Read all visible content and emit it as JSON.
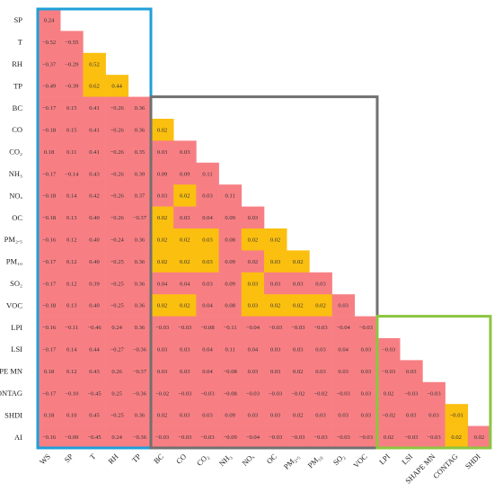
{
  "chart_data": {
    "type": "heatmap",
    "title": "",
    "row_labels": [
      "SP",
      "T",
      "RH",
      "TP",
      "BC",
      "CO",
      "CO₂",
      "NH₃",
      "NOₓ",
      "OC",
      "PM₂.₅",
      "PM₁₀",
      "SO₂",
      "VOC",
      "LPI",
      "LSI",
      "SHAPE MN",
      "CONTAG",
      "SHDI",
      "AI"
    ],
    "col_labels": [
      "WS",
      "SP",
      "T",
      "RH",
      "TP",
      "BC",
      "CO",
      "CO₂",
      "NH₃",
      "NOₓ",
      "OC",
      "PM₂.₅",
      "PM₁₀",
      "SO₂",
      "VOC",
      "LPI",
      "LSI",
      "SHAPE MN",
      "CONTAG",
      "SHDI"
    ],
    "cell_labels": [
      [
        "0.24"
      ],
      [
        "−0.52",
        "−0.55"
      ],
      [
        "−0.37",
        "−0.29",
        "0.52"
      ],
      [
        "−0.49",
        "−0.39",
        "0.62",
        "0.44"
      ],
      [
        "−0.17",
        "0.15",
        "0.41",
        "−0.26",
        "0.36"
      ],
      [
        "−0.18",
        "0.15",
        "0.41",
        "−0.26",
        "0.36",
        "0.02"
      ],
      [
        "0.18",
        "0.11",
        "0.41",
        "−0.26",
        "0.35",
        "0.03",
        "0.03"
      ],
      [
        "−0.17",
        "−0.14",
        "0.43",
        "−0.26",
        "0.39",
        "0.09",
        "0.09",
        "0.11"
      ],
      [
        "−0.18",
        "0.14",
        "0.42",
        "−0.26",
        "0.37",
        "0.03",
        "0.02",
        "0.03",
        "0.11"
      ],
      [
        "−0.18",
        "0.13",
        "0.40",
        "−0.26",
        "−0.37",
        "0.02",
        "0.03",
        "0.04",
        "0.09",
        "0.03"
      ],
      [
        "−0.16",
        "0.12",
        "0.40",
        "−0.24",
        "0.36",
        "0.02",
        "0.02",
        "0.03",
        "0.08",
        "0.02",
        "0.02"
      ],
      [
        "−0.17",
        "0.12",
        "0.40",
        "−0.25",
        "0.36",
        "0.02",
        "0.02",
        "0.03",
        "0.09",
        "0.02",
        "0.03",
        "0.02"
      ],
      [
        "−0.17",
        "0.12",
        "0.39",
        "−0.25",
        "0.36",
        "0.04",
        "0.04",
        "0.03",
        "0.09",
        "0.03",
        "0.03",
        "0.03",
        "0.03"
      ],
      [
        "−0.18",
        "0.13",
        "0.40",
        "−0.25",
        "0.36",
        "0.02",
        "0.02",
        "0.04",
        "0.08",
        "0.03",
        "0.02",
        "0.02",
        "0.02",
        "0.03"
      ],
      [
        "−0.16",
        "−0.11",
        "−0.46",
        "0.24",
        "0.36",
        "−0.03",
        "−0.03",
        "−0.08",
        "−0.11",
        "−0.04",
        "−0.03",
        "−0.03",
        "−0.03",
        "−0.04",
        "−0.03"
      ],
      [
        "−0.17",
        "0.14",
        "0.44",
        "−0.27",
        "−0.36",
        "0.03",
        "0.03",
        "0.04",
        "0.11",
        "0.04",
        "0.03",
        "0.03",
        "0.03",
        "0.04",
        "0.03",
        "−0.03"
      ],
      [
        "0.18",
        "0.12",
        "0.43",
        "0.26",
        "−0.37",
        "0.03",
        "0.03",
        "0.04",
        "−0.08",
        "0.03",
        "0.03",
        "0.02",
        "0.03",
        "0.03",
        "0.03",
        "−0.03",
        "0.03"
      ],
      [
        "−0.17",
        "−0.10",
        "−0.45",
        "0.25",
        "−0.36",
        "−0.02",
        "−0.03",
        "−0.03",
        "−0.08",
        "−0.03",
        "−0.03",
        "−0.02",
        "−0.02",
        "−0.03",
        "0.03",
        "0.02",
        "−0.03",
        "−0.03"
      ],
      [
        "0.18",
        "0.10",
        "0.45",
        "−0.25",
        "0.36",
        "0.02",
        "0.03",
        "0.03",
        "0.09",
        "0.03",
        "0.03",
        "0.02",
        "0.03",
        "0.03",
        "0.03",
        "−0.02",
        "0.03",
        "0.03",
        "−0.01"
      ],
      [
        "−0.16",
        "−0.09",
        "−0.45",
        "0.24",
        "−0.36",
        "−0.03",
        "−0.03",
        "−0.03",
        "−0.09",
        "−0.04",
        "−0.03",
        "−0.03",
        "−0.03",
        "−0.03",
        "−0.03",
        "0.02",
        "−0.03",
        "−0.03",
        "0.02",
        "0.02"
      ]
    ],
    "highlight_cells": [
      [
        2,
        2
      ],
      [
        3,
        2
      ],
      [
        3,
        3
      ],
      [
        5,
        5
      ],
      [
        8,
        6
      ],
      [
        9,
        5
      ],
      [
        10,
        5
      ],
      [
        10,
        6
      ],
      [
        10,
        7
      ],
      [
        10,
        9
      ],
      [
        10,
        10
      ],
      [
        11,
        5
      ],
      [
        11,
        6
      ],
      [
        11,
        7
      ],
      [
        11,
        10
      ],
      [
        11,
        11
      ],
      [
        12,
        9
      ],
      [
        13,
        5
      ],
      [
        13,
        6
      ],
      [
        13,
        9
      ],
      [
        13,
        10
      ],
      [
        13,
        11
      ],
      [
        13,
        12
      ],
      [
        18,
        18
      ],
      [
        19,
        18
      ]
    ],
    "colors": {
      "cell": "#f77f84",
      "highlight": "#fbbf0f",
      "border_box_1": "#1f9fd8",
      "border_box_2": "#707070",
      "border_box_3": "#8cc63f"
    },
    "boxes": [
      {
        "name": "climate-box",
        "rows": [
          0,
          19
        ],
        "cols": [
          0,
          4
        ],
        "color_key": "border_box_1"
      },
      {
        "name": "pollutant-box",
        "rows": [
          4,
          19
        ],
        "cols": [
          5,
          14
        ],
        "color_key": "border_box_2"
      },
      {
        "name": "landscape-box",
        "rows": [
          14,
          19
        ],
        "cols": [
          15,
          19
        ],
        "color_key": "border_box_3"
      }
    ]
  }
}
